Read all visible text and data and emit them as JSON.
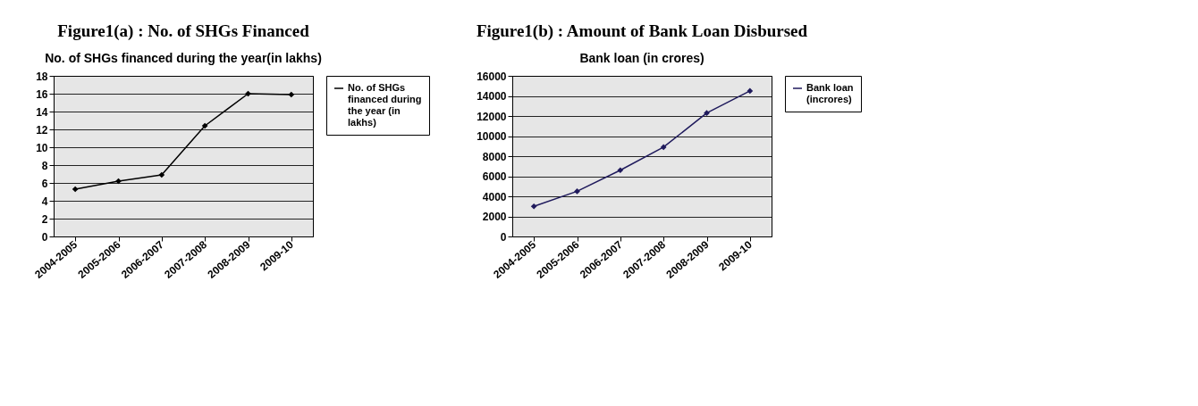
{
  "chart_data": [
    {
      "type": "line",
      "title": "Figure1(a) : No. of SHGs Financed",
      "subtitle": "No. of SHGs financed during the year(in lakhs)",
      "categories": [
        "2004-2005",
        "2005-2006",
        "2006-2007",
        "2007-2008",
        "2008-2009",
        "2009-10"
      ],
      "series": [
        {
          "name": "No. of SHGs financed during the year (in lakhs)",
          "color": "#000000",
          "values": [
            5.3,
            6.2,
            6.9,
            12.4,
            16.0,
            15.9
          ]
        }
      ],
      "ylim": [
        0,
        18
      ],
      "yticks": [
        0,
        2,
        4,
        6,
        8,
        10,
        12,
        14,
        16,
        18
      ],
      "grid": "y",
      "legend": "right",
      "marker": "diamond",
      "line_style": "solid"
    },
    {
      "type": "line",
      "title": "Figure1(b) : Amount of Bank Loan Disbursed",
      "subtitle": "Bank loan (in crores)",
      "categories": [
        "2004-2005",
        "2005-2006",
        "2006-2007",
        "2007-2008",
        "2008-2009",
        "2009-10"
      ],
      "series": [
        {
          "name": "Bank loan (incrores)",
          "color": "#1f1a5c",
          "values": [
            3000,
            4500,
            6600,
            8900,
            12300,
            14500
          ]
        }
      ],
      "ylim": [
        0,
        16000
      ],
      "yticks": [
        0,
        2000,
        4000,
        6000,
        8000,
        10000,
        12000,
        14000,
        16000
      ],
      "grid": "y",
      "legend": "right",
      "marker": "diamond",
      "line_style": "solid"
    }
  ]
}
